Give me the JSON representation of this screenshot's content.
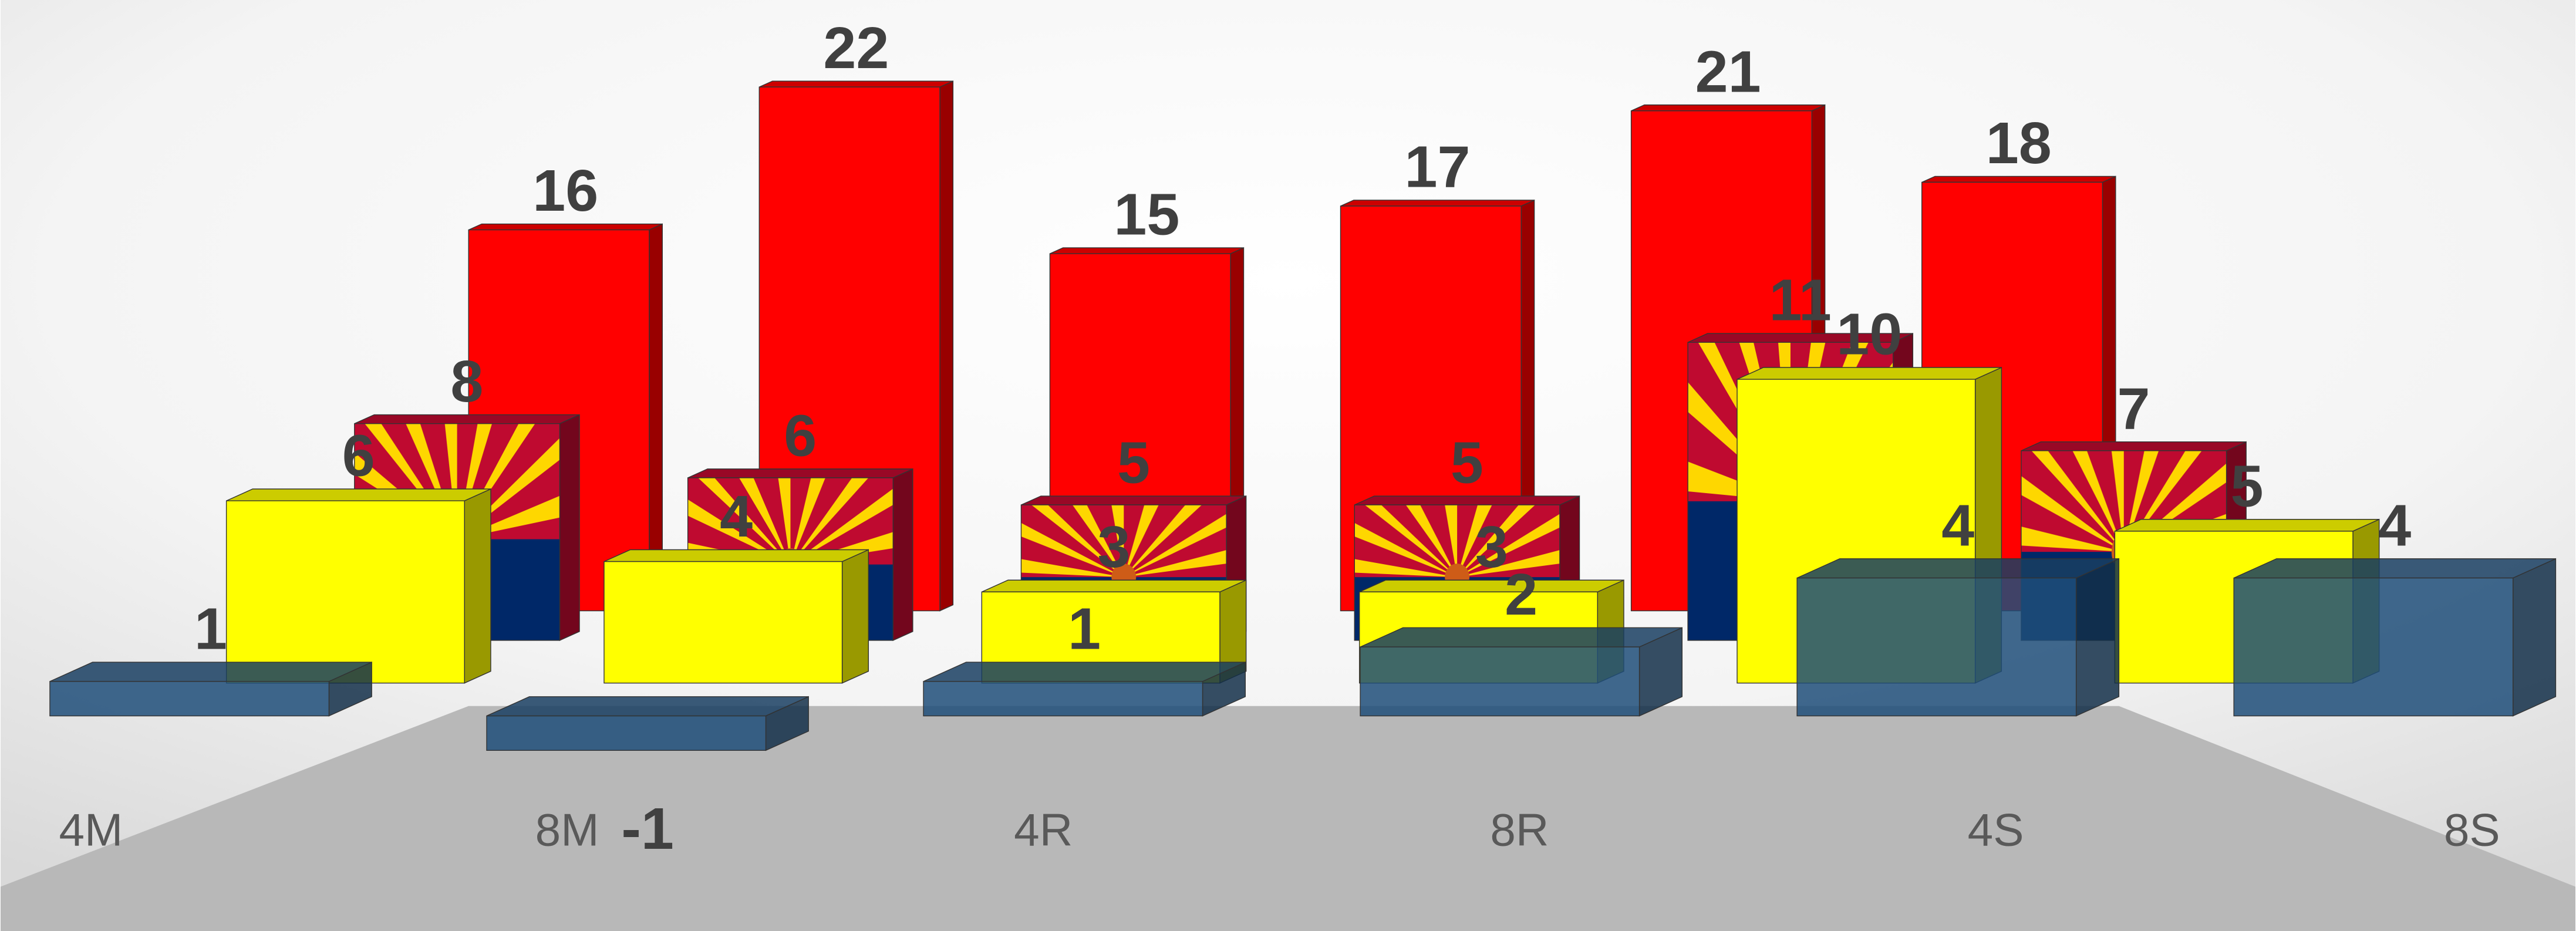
{
  "chart_data": {
    "type": "bar3d",
    "categories": [
      "4M",
      "8M",
      "4R",
      "8R",
      "4S",
      "8S"
    ],
    "series": [
      {
        "color": "#ff0000",
        "values": [
          16,
          22,
          15,
          17,
          21,
          18
        ]
      },
      {
        "color": "#bf0a30",
        "values": [
          8,
          6,
          5,
          5,
          11,
          7
        ]
      },
      {
        "color": "#ffff00",
        "values": [
          6,
          4,
          3,
          3,
          10,
          5
        ]
      },
      {
        "color": "#1f4e79",
        "values": [
          1,
          -1,
          1,
          2,
          4,
          4
        ]
      }
    ]
  }
}
